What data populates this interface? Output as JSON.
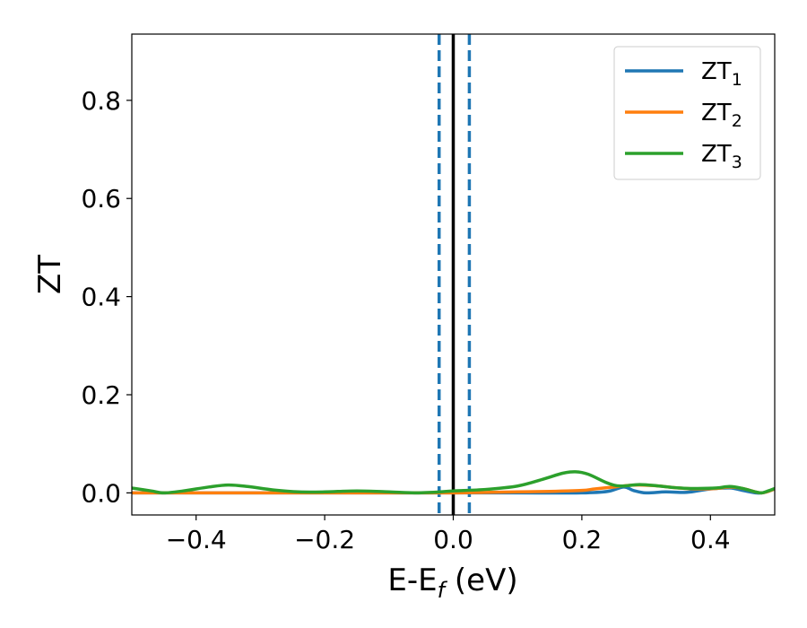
{
  "chart_data": {
    "type": "line",
    "xlabel": "E-E",
    "xlabel_sub": "f",
    "xlabel_unit": "(eV)",
    "ylabel": "ZT",
    "xlim": [
      -0.5,
      0.5
    ],
    "ylim": [
      -0.045,
      0.935
    ],
    "xticks": [
      -0.4,
      -0.2,
      0.0,
      0.2,
      0.4
    ],
    "xtick_labels": [
      "−0.4",
      "−0.2",
      "0.0",
      "0.2",
      "0.4"
    ],
    "yticks": [
      0.0,
      0.2,
      0.4,
      0.6,
      0.8
    ],
    "ytick_labels": [
      "0.0",
      "0.2",
      "0.4",
      "0.6",
      "0.8"
    ],
    "grid": false,
    "legend_position": "top-right",
    "vlines": [
      {
        "x": 0.0,
        "style": "solid",
        "color": "#000000"
      },
      {
        "x": -0.022,
        "style": "dashed",
        "color": "#1f77b4"
      },
      {
        "x": 0.025,
        "style": "dashed",
        "color": "#1f77b4"
      }
    ],
    "series": [
      {
        "name": "ZT",
        "sub": "1",
        "color": "#1f77b4",
        "x": [
          -0.5,
          -0.47,
          -0.44,
          -0.4,
          -0.3,
          -0.2,
          -0.1,
          0.0,
          0.1,
          0.2,
          0.24,
          0.265,
          0.28,
          0.3,
          0.33,
          0.36,
          0.38,
          0.4,
          0.43,
          0.45,
          0.47,
          0.48,
          0.49,
          0.5
        ],
        "y": [
          0.0,
          0.0,
          0.0,
          0.0,
          0.0,
          0.0,
          0.0,
          0.0,
          0.0,
          0.0,
          0.003,
          0.012,
          0.005,
          0.0,
          0.002,
          0.001,
          0.004,
          0.008,
          0.01,
          0.005,
          0.0,
          0.0,
          0.003,
          0.008
        ]
      },
      {
        "name": "ZT",
        "sub": "2",
        "color": "#ff7f0e",
        "x": [
          -0.5,
          -0.4,
          -0.3,
          -0.2,
          -0.1,
          0.0,
          0.05,
          0.1,
          0.15,
          0.2,
          0.22,
          0.25,
          0.27,
          0.29,
          0.32,
          0.35,
          0.38,
          0.41,
          0.43,
          0.45,
          0.47,
          0.48,
          0.49,
          0.5
        ],
        "y": [
          0.0,
          0.0,
          0.0,
          0.0,
          0.0,
          0.0,
          0.001,
          0.002,
          0.003,
          0.005,
          0.008,
          0.012,
          0.015,
          0.016,
          0.014,
          0.01,
          0.008,
          0.009,
          0.012,
          0.009,
          0.002,
          0.0,
          0.003,
          0.008
        ]
      },
      {
        "name": "ZT",
        "sub": "3",
        "color": "#2ca02c",
        "x": [
          -0.5,
          -0.47,
          -0.45,
          -0.42,
          -0.38,
          -0.35,
          -0.32,
          -0.28,
          -0.24,
          -0.2,
          -0.15,
          -0.1,
          -0.06,
          -0.02,
          0.0,
          0.05,
          0.1,
          0.14,
          0.17,
          0.19,
          0.21,
          0.24,
          0.26,
          0.29,
          0.32,
          0.35,
          0.38,
          0.41,
          0.43,
          0.45,
          0.47,
          0.48,
          0.49,
          0.5
        ],
        "y": [
          0.01,
          0.004,
          0.0,
          0.004,
          0.012,
          0.016,
          0.013,
          0.006,
          0.002,
          0.002,
          0.004,
          0.002,
          0.0,
          0.002,
          0.004,
          0.007,
          0.014,
          0.028,
          0.04,
          0.043,
          0.038,
          0.02,
          0.014,
          0.017,
          0.014,
          0.01,
          0.009,
          0.01,
          0.013,
          0.009,
          0.002,
          0.0,
          0.004,
          0.009
        ]
      }
    ]
  }
}
